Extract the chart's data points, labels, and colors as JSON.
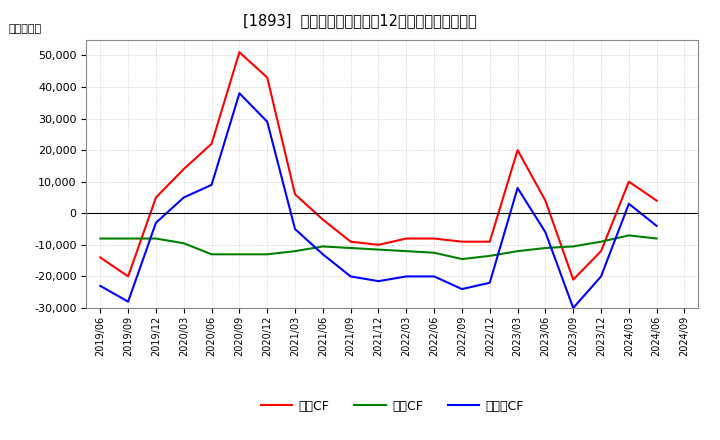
{
  "title": "[1893]  キャッシュフローの12か月移動合計の推移",
  "ylabel": "（百万円）",
  "ylim": [
    -30000,
    55000
  ],
  "yticks": [
    -30000,
    -20000,
    -10000,
    0,
    10000,
    20000,
    30000,
    40000,
    50000
  ],
  "background_color": "#ffffff",
  "plot_bg_color": "#ffffff",
  "grid_color": "#aaaaaa",
  "dates": [
    "2019/06",
    "2019/09",
    "2019/12",
    "2020/03",
    "2020/06",
    "2020/09",
    "2020/12",
    "2021/03",
    "2021/06",
    "2021/09",
    "2021/12",
    "2022/03",
    "2022/06",
    "2022/09",
    "2022/12",
    "2023/03",
    "2023/06",
    "2023/09",
    "2023/12",
    "2024/03",
    "2024/06",
    "2024/09"
  ],
  "eigyo_cf": [
    -14000,
    -20000,
    5000,
    14000,
    22000,
    51000,
    43000,
    6000,
    -2000,
    -9000,
    -10000,
    -8000,
    -8000,
    -9000,
    -9000,
    20000,
    4000,
    -21000,
    -12000,
    10000,
    4000,
    null
  ],
  "toshi_cf": [
    -8000,
    -8000,
    -8000,
    -9500,
    -13000,
    -13000,
    -13000,
    -12000,
    -10500,
    -11000,
    -11500,
    -12000,
    -12500,
    -14500,
    -13500,
    -12000,
    -11000,
    -10500,
    -9000,
    -7000,
    -8000,
    null
  ],
  "free_cf": [
    -23000,
    -28000,
    -3000,
    5000,
    9000,
    38000,
    29000,
    -5000,
    -13000,
    -20000,
    -21500,
    -20000,
    -20000,
    -24000,
    -22000,
    8000,
    -6000,
    -30000,
    -20000,
    3000,
    -4000,
    null
  ],
  "eigyo_color": "#ff0000",
  "toshi_color": "#008000",
  "free_color": "#0000ff",
  "line_width": 1.5,
  "legend_labels": [
    "営業CF",
    "投資CF",
    "フリーCF"
  ]
}
